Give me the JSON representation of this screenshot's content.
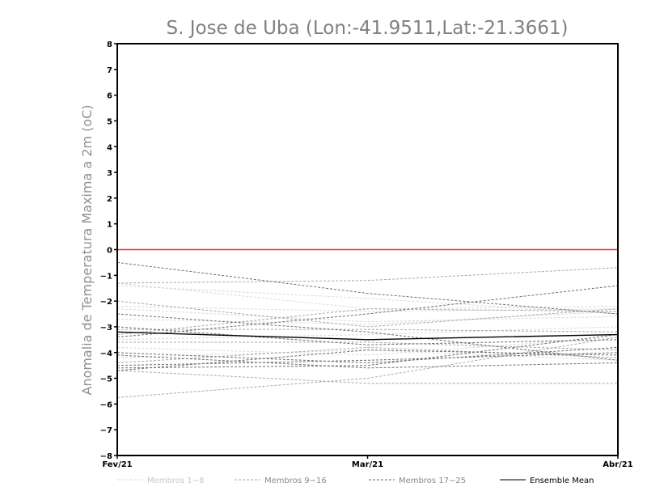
{
  "chart_data": {
    "type": "line",
    "title": "S. Jose de Uba (Lon:-41.9511,Lat:-21.3661)",
    "ylabel": "Anomalia de Temperatura Maxima a 2m (oC)",
    "xlabel": "",
    "categories": [
      "Fev/21",
      "Mar/21",
      "Abr/21"
    ],
    "ylim": [
      -8,
      8
    ],
    "yticks": [
      8,
      7,
      6,
      5,
      4,
      3,
      2,
      1,
      0,
      -1,
      -2,
      -3,
      -4,
      -5,
      -6,
      -7,
      -8
    ],
    "ytick_labels": [
      "8",
      "7",
      "6",
      "5",
      "4",
      "3",
      "2",
      "1",
      "0",
      "−1",
      "−2",
      "−3",
      "−4",
      "−5",
      "−6",
      "−7",
      "−8"
    ],
    "reference_line": {
      "y": 0,
      "color": "#ff2a2a"
    },
    "groups": [
      {
        "name": "Membros 1-8",
        "label": "Membros 1−8",
        "color": "#d9d9d9",
        "dash": "3,2"
      },
      {
        "name": "Membros 9-16",
        "label": "Membros 9−16",
        "color": "#a8a8a8",
        "dash": "3,2"
      },
      {
        "name": "Membros 17-25",
        "label": "Membros 17−25",
        "color": "#6e6e6e",
        "dash": "3,2"
      },
      {
        "name": "Ensemble Mean",
        "label": "Ensemble Mean",
        "color": "#000000",
        "dash": ""
      }
    ],
    "series": [
      {
        "group": 0,
        "values": [
          -1.3,
          -2.3,
          -2.2
        ]
      },
      {
        "group": 0,
        "values": [
          -2.2,
          -2.4,
          -2.3
        ]
      },
      {
        "group": 0,
        "values": [
          -2.3,
          -2.8,
          -2.6
        ]
      },
      {
        "group": 0,
        "values": [
          -3.5,
          -3.3,
          -3.0
        ]
      },
      {
        "group": 0,
        "values": [
          -1.4,
          -1.9,
          -2.5
        ]
      },
      {
        "group": 0,
        "values": [
          -3.8,
          -4.1,
          -3.4
        ]
      },
      {
        "group": 0,
        "values": [
          -4.2,
          -3.9,
          -4.3
        ]
      },
      {
        "group": 0,
        "values": [
          -2.7,
          -2.9,
          -2.4
        ]
      },
      {
        "group": 1,
        "values": [
          -5.75,
          -5.0,
          -3.4
        ]
      },
      {
        "group": 1,
        "values": [
          -4.7,
          -5.2,
          -5.2
        ]
      },
      {
        "group": 1,
        "values": [
          -1.3,
          -1.2,
          -0.7
        ]
      },
      {
        "group": 1,
        "values": [
          -3.1,
          -3.1,
          -3.2
        ]
      },
      {
        "group": 1,
        "values": [
          -3.3,
          -2.3,
          -2.4
        ]
      },
      {
        "group": 1,
        "values": [
          -4.4,
          -3.8,
          -4.2
        ]
      },
      {
        "group": 1,
        "values": [
          -3.6,
          -3.6,
          -3.9
        ]
      },
      {
        "group": 1,
        "values": [
          -2.0,
          -3.0,
          -2.3
        ]
      },
      {
        "group": 2,
        "values": [
          -0.5,
          -1.7,
          -2.5
        ]
      },
      {
        "group": 2,
        "values": [
          -2.5,
          -3.2,
          -4.3
        ]
      },
      {
        "group": 2,
        "values": [
          -3.4,
          -2.5,
          -1.4
        ]
      },
      {
        "group": 2,
        "values": [
          -4.6,
          -4.5,
          -3.3
        ]
      },
      {
        "group": 2,
        "values": [
          -4.5,
          -4.3,
          -4.0
        ]
      },
      {
        "group": 2,
        "values": [
          -4.0,
          -4.4,
          -3.8
        ]
      },
      {
        "group": 2,
        "values": [
          -3.0,
          -3.7,
          -3.5
        ]
      },
      {
        "group": 2,
        "values": [
          -4.1,
          -4.6,
          -4.4
        ]
      },
      {
        "group": 2,
        "values": [
          -4.7,
          -3.9,
          -4.1
        ]
      },
      {
        "group": 3,
        "values": [
          -3.2,
          -3.5,
          -3.3
        ]
      }
    ]
  }
}
